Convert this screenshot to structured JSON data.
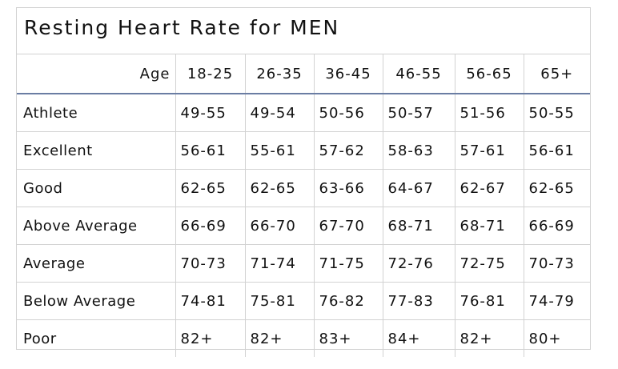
{
  "title": "Resting Heart Rate for MEN",
  "header": {
    "age_label": "Age",
    "age_groups": [
      "18-25",
      "26-35",
      "36-45",
      "46-55",
      "56-65",
      "65+"
    ]
  },
  "rows": [
    {
      "label": "Athlete",
      "values": [
        "49-55",
        "49-54",
        "50-56",
        "50-57",
        "51-56",
        "50-55"
      ]
    },
    {
      "label": "Excellent",
      "values": [
        "56-61",
        "55-61",
        "57-62",
        "58-63",
        "57-61",
        "56-61"
      ]
    },
    {
      "label": "Good",
      "values": [
        "62-65",
        "62-65",
        "63-66",
        "64-67",
        "62-67",
        "62-65"
      ]
    },
    {
      "label": "Above Average",
      "values": [
        "66-69",
        "66-70",
        "67-70",
        "68-71",
        "68-71",
        "66-69"
      ]
    },
    {
      "label": "Average",
      "values": [
        "70-73",
        "71-74",
        "71-75",
        "72-76",
        "72-75",
        "70-73"
      ]
    },
    {
      "label": "Below Average",
      "values": [
        "74-81",
        "75-81",
        "76-82",
        "77-83",
        "76-81",
        "74-79"
      ]
    },
    {
      "label": "Poor",
      "values": [
        "82+",
        "82+",
        "83+",
        "84+",
        "82+",
        "80+"
      ]
    }
  ],
  "colors": {
    "border": "#d2d2d2",
    "header_rule": "#6a7da3",
    "text": "#111111"
  }
}
